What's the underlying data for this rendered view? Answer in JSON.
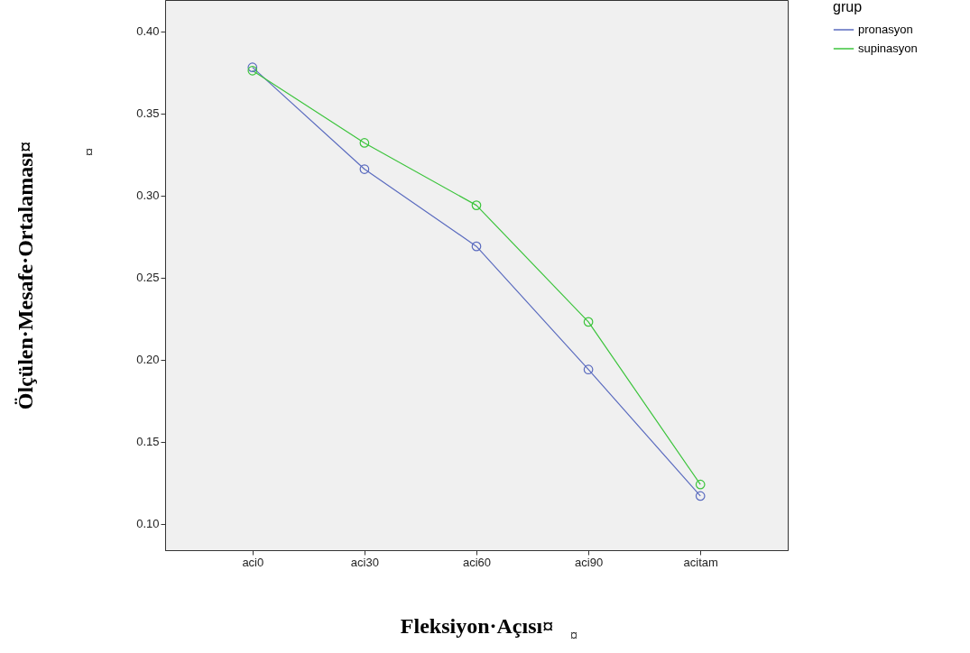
{
  "chart_data": {
    "type": "line",
    "xlabel": "Fleksiyon·Açısı¤",
    "ylabel": "Ölçülen·Mesafe·Ortalaması¤",
    "legend_title": "grup",
    "categories": [
      "aci0",
      "aci30",
      "aci60",
      "aci90",
      "acitam"
    ],
    "series": [
      {
        "name": "pronasyon",
        "color": "#5a6bbf",
        "values": [
          0.378,
          0.316,
          0.269,
          0.194,
          0.117
        ]
      },
      {
        "name": "supinasyon",
        "color": "#3cc43c",
        "values": [
          0.376,
          0.332,
          0.294,
          0.223,
          0.124
        ]
      }
    ],
    "ylim": [
      0.084,
      0.419
    ],
    "yticks": [
      {
        "value": 0.1,
        "label": "0.10"
      },
      {
        "value": 0.15,
        "label": "0.15"
      },
      {
        "value": 0.2,
        "label": "0.20"
      },
      {
        "value": 0.25,
        "label": "0.25"
      },
      {
        "value": 0.3,
        "label": "0.30"
      },
      {
        "value": 0.35,
        "label": "0.35"
      },
      {
        "value": 0.4,
        "label": "0.40"
      }
    ],
    "grid": false,
    "legend": "top right",
    "marker": "circle",
    "line_style": "solid",
    "annotations": [
      "¤",
      "¤"
    ]
  }
}
